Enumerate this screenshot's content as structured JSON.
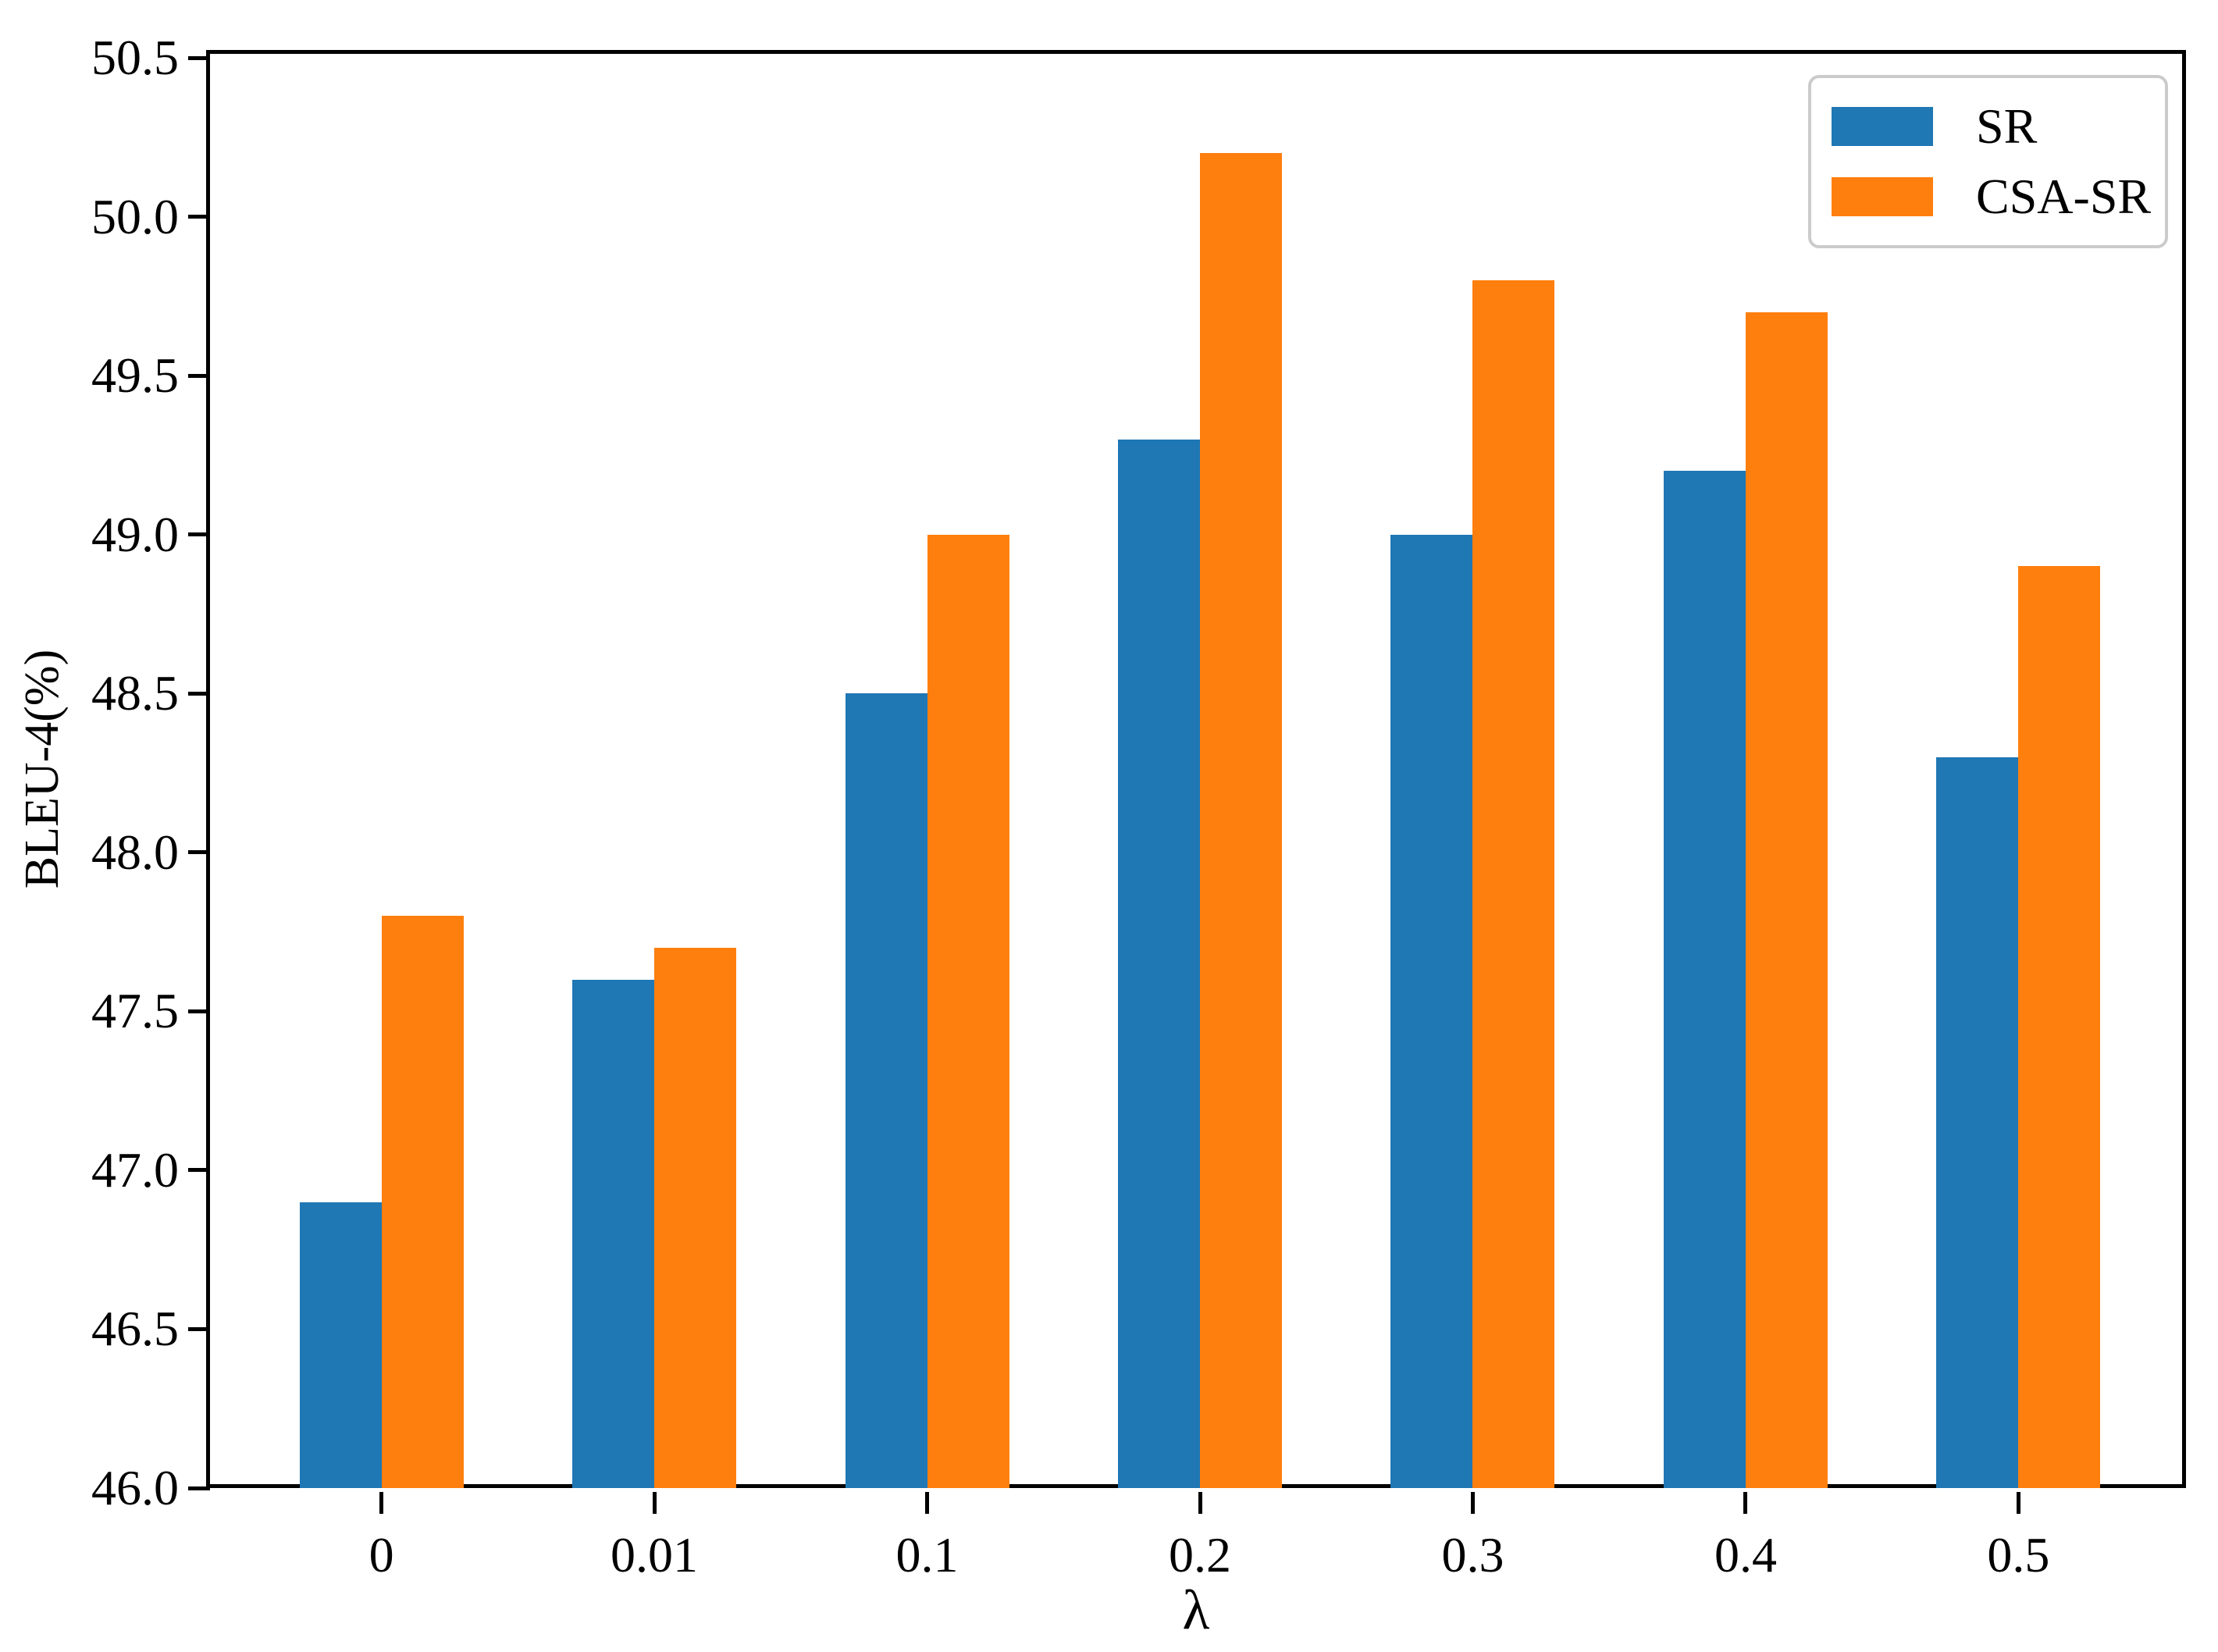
{
  "figure": {
    "background": "#ffffff",
    "axis_color": "#000000",
    "legend_border_color": "#cbcbcb"
  },
  "chart_data": {
    "type": "bar",
    "title": "",
    "xlabel": "λ",
    "ylabel": "BLEU-4(%)",
    "categories": [
      "0",
      "0.01",
      "0.1",
      "0.2",
      "0.3",
      "0.4",
      "0.5"
    ],
    "series": [
      {
        "name": "SR",
        "color": "#1f77b4",
        "values": [
          46.9,
          47.6,
          48.5,
          49.3,
          49.0,
          49.2,
          48.3
        ]
      },
      {
        "name": "CSA-SR",
        "color": "#ff7f0e",
        "values": [
          47.8,
          47.7,
          49.0,
          50.2,
          49.8,
          49.7,
          48.9
        ]
      }
    ],
    "ylim": [
      46.0,
      50.5
    ],
    "y_ticks": [
      "46.0",
      "46.5",
      "47.0",
      "47.5",
      "48.0",
      "48.5",
      "49.0",
      "49.5",
      "50.0",
      "50.5"
    ],
    "grid": false,
    "legend_position": "upper right"
  }
}
